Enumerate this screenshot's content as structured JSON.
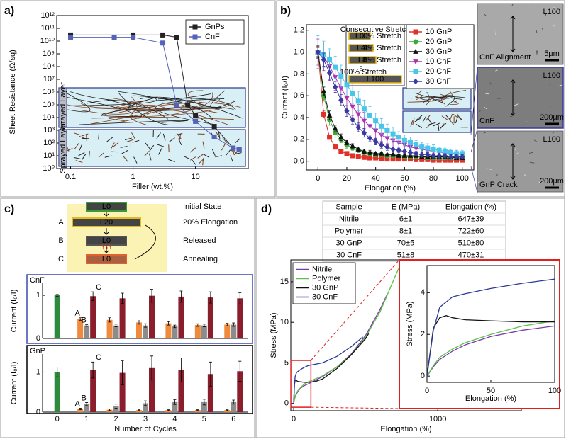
{
  "panel_labels": [
    "a)",
    "b)",
    "c)",
    "d)"
  ],
  "chart_data": [
    {
      "type": "line",
      "xlabel": "Filler (wt.%)",
      "ylabel": "Sheet Resistance (Ω/sq)",
      "xscale": "log",
      "yscale": "log",
      "xlim": [
        0.06,
        70
      ],
      "ylim": [
        1,
        1000000000000.0
      ],
      "xticks": [
        0.1,
        1,
        10
      ],
      "yticks": [
        {
          "value": 1,
          "label": "10⁰"
        },
        {
          "value": 10,
          "label": "10¹"
        },
        {
          "value": 100,
          "label": "10²"
        },
        {
          "value": 1000,
          "label": "10³"
        },
        {
          "value": 10000.0,
          "label": "10⁴"
        },
        {
          "value": 100000.0,
          "label": "10⁵"
        },
        {
          "value": 1000000.0,
          "label": "10⁶"
        },
        {
          "value": 10000000.0,
          "label": "10⁷"
        },
        {
          "value": 100000000.0,
          "label": "10⁸"
        },
        {
          "value": 1000000000.0,
          "label": "10⁹"
        },
        {
          "value": 10000000000.0,
          "label": "10¹⁰"
        },
        {
          "value": 100000000000.0,
          "label": "10¹¹"
        },
        {
          "value": 1000000000000.0,
          "label": "10¹²"
        }
      ],
      "legend": "upper right",
      "annotations": [
        "Sprayed Layer",
        "Sprayed Layer"
      ],
      "series": [
        {
          "name": "GnPs",
          "color": "#222222",
          "marker": "square",
          "x": [
            0.1,
            1,
            3,
            5,
            7.5,
            10,
            20,
            40,
            50
          ],
          "values": [
            30000000000.0,
            30000000000.0,
            30000000000.0,
            20000000000.0,
            100000.0,
            15000.0,
            2000.0,
            40,
            30
          ]
        },
        {
          "name": "CnF",
          "color": "#5562b8",
          "marker": "square",
          "x": [
            0.1,
            0.5,
            1,
            3,
            5,
            10,
            20,
            40,
            50
          ],
          "values": [
            20000000000.0,
            20000000000.0,
            20000000000.0,
            7000000000.0,
            100000.0,
            5000.0,
            300,
            40,
            30
          ]
        }
      ]
    },
    {
      "type": "line",
      "xlabel": "Elongation (%)",
      "ylabel": "Current (I₀/I)",
      "xlim": [
        -8,
        108
      ],
      "ylim": [
        -0.08,
        1.25
      ],
      "xticks": [
        0,
        20,
        40,
        60,
        80,
        100
      ],
      "yticks": [
        {
          "value": 0,
          "label": "0.0"
        },
        0.2,
        0.4,
        0.6,
        0.8,
        {
          "value": 1,
          "label": "1.0"
        },
        1.2
      ],
      "legend": "upper right",
      "x": [
        0,
        4,
        8,
        12,
        16,
        20,
        24,
        28,
        32,
        36,
        40,
        44,
        48,
        52,
        56,
        60,
        64,
        68,
        72,
        76,
        80,
        84,
        88,
        92,
        96,
        100
      ],
      "series": [
        {
          "name": "10 GnP",
          "color": "#e0302a",
          "marker": "square",
          "values": [
            1.0,
            0.43,
            0.22,
            0.13,
            0.09,
            0.07,
            0.05,
            0.04,
            0.035,
            0.03,
            0.03,
            0.025,
            0.02,
            0.02,
            0.02,
            0.02,
            0.02,
            0.015,
            0.015,
            0.015,
            0.01,
            0.01,
            0.01,
            0.01,
            0.01,
            0.01
          ],
          "errors": [
            0.04,
            0.03,
            0.02,
            0.02,
            0.01,
            0.01,
            0.01,
            0.01,
            0.01,
            0.01,
            0.01,
            0.01,
            0.01,
            0.01,
            0.01,
            0.01,
            0.01,
            0.01,
            0.01,
            0.01,
            0.01,
            0.01,
            0.01,
            0.01,
            0.01,
            0.01
          ]
        },
        {
          "name": "20 GnP",
          "color": "#3aaa35",
          "marker": "circle",
          "values": [
            1.0,
            0.6,
            0.38,
            0.26,
            0.2,
            0.15,
            0.12,
            0.1,
            0.08,
            0.07,
            0.06,
            0.06,
            0.05,
            0.05,
            0.05,
            0.04,
            0.04,
            0.04,
            0.04,
            0.03,
            0.03,
            0.03,
            0.03,
            0.03,
            0.03,
            0.03
          ],
          "errors": [
            0.06,
            0.05,
            0.05,
            0.04,
            0.03,
            0.03,
            0.02,
            0.02,
            0.02,
            0.02,
            0.02,
            0.02,
            0.01,
            0.01,
            0.01,
            0.01,
            0.01,
            0.01,
            0.01,
            0.01,
            0.01,
            0.01,
            0.01,
            0.01,
            0.01,
            0.01
          ]
        },
        {
          "name": "30 GnP",
          "color": "#111111",
          "marker": "triangle",
          "values": [
            1.0,
            0.64,
            0.42,
            0.3,
            0.22,
            0.17,
            0.14,
            0.11,
            0.09,
            0.08,
            0.07,
            0.07,
            0.06,
            0.06,
            0.05,
            0.05,
            0.05,
            0.05,
            0.04,
            0.04,
            0.04,
            0.04,
            0.04,
            0.04,
            0.03,
            0.03
          ],
          "errors": [
            0.05,
            0.04,
            0.04,
            0.03,
            0.03,
            0.02,
            0.02,
            0.02,
            0.02,
            0.02,
            0.01,
            0.01,
            0.01,
            0.01,
            0.01,
            0.01,
            0.01,
            0.01,
            0.01,
            0.01,
            0.01,
            0.01,
            0.01,
            0.01,
            0.01,
            0.01
          ]
        },
        {
          "name": "10 CnF",
          "color": "#b030b0",
          "marker": "triangle-down",
          "values": [
            1.0,
            0.96,
            0.87,
            0.77,
            0.67,
            0.58,
            0.5,
            0.43,
            0.37,
            0.32,
            0.28,
            0.24,
            0.21,
            0.19,
            0.17,
            0.15,
            0.13,
            0.12,
            0.11,
            0.1,
            0.09,
            0.08,
            0.08,
            0.07,
            0.07,
            0.06
          ],
          "errors": [
            0.12,
            0.13,
            0.13,
            0.12,
            0.12,
            0.11,
            0.1,
            0.09,
            0.08,
            0.08,
            0.07,
            0.07,
            0.06,
            0.06,
            0.05,
            0.05,
            0.05,
            0.04,
            0.04,
            0.04,
            0.03,
            0.03,
            0.03,
            0.03,
            0.03,
            0.03
          ]
        },
        {
          "name": "20 CnF",
          "color": "#4cc4ea",
          "marker": "square",
          "values": [
            1.0,
            0.98,
            0.93,
            0.86,
            0.78,
            0.7,
            0.62,
            0.55,
            0.48,
            0.42,
            0.37,
            0.32,
            0.28,
            0.25,
            0.22,
            0.19,
            0.17,
            0.15,
            0.13,
            0.12,
            0.11,
            0.1,
            0.09,
            0.08,
            0.07,
            0.07
          ],
          "errors": [
            0.15,
            0.12,
            0.1,
            0.1,
            0.1,
            0.1,
            0.09,
            0.09,
            0.08,
            0.08,
            0.07,
            0.07,
            0.06,
            0.06,
            0.05,
            0.05,
            0.05,
            0.04,
            0.04,
            0.04,
            0.04,
            0.03,
            0.03,
            0.03,
            0.03,
            0.03
          ]
        },
        {
          "name": "30 CnF",
          "color": "#3a3aa0",
          "marker": "diamond",
          "values": [
            1.0,
            0.93,
            0.81,
            0.68,
            0.56,
            0.46,
            0.38,
            0.31,
            0.26,
            0.21,
            0.18,
            0.15,
            0.13,
            0.11,
            0.1,
            0.09,
            0.08,
            0.07,
            0.06,
            0.06,
            0.05,
            0.05,
            0.05,
            0.04,
            0.04,
            0.04
          ],
          "errors": [
            0.06,
            0.06,
            0.06,
            0.05,
            0.05,
            0.05,
            0.04,
            0.04,
            0.04,
            0.03,
            0.03,
            0.03,
            0.03,
            0.02,
            0.02,
            0.02,
            0.02,
            0.02,
            0.02,
            0.02,
            0.02,
            0.02,
            0.02,
            0.02,
            0.02,
            0.02
          ]
        }
      ],
      "schematic": {
        "title": "Consecutive Stretch",
        "bars": [
          "L0",
          "L4",
          "L8",
          "L100"
        ],
        "labels": [
          "0% Stretch",
          "4% Stretch",
          "8% Stretch",
          "100% Stretch"
        ]
      },
      "photos": [
        {
          "label": "L100",
          "caption": "CnF Alignment",
          "scale": "5μm"
        },
        {
          "label": "L100",
          "caption": "CnF",
          "scale": "200μm"
        },
        {
          "label": "L100",
          "caption": "GnP Crack",
          "scale": "200μm"
        }
      ]
    },
    {
      "type": "bar",
      "title": "CnF",
      "ylabel": "Current (I₀/I)",
      "ylim": [
        0,
        1.28
      ],
      "yticks": [
        0,
        1
      ],
      "series": [
        {
          "color": "#2e8b3e",
          "values": [
            1.0,
            null,
            null,
            null,
            null,
            null,
            null
          ],
          "errors": [
            0.02,
            null,
            null,
            null,
            null,
            null,
            null
          ]
        },
        {
          "name": "A",
          "color": "#f08a3c",
          "values": [
            null,
            0.45,
            0.43,
            0.37,
            0.35,
            0.31,
            0.32
          ],
          "errors": [
            null,
            0.03,
            0.05,
            0.04,
            0.04,
            0.03,
            0.03
          ]
        },
        {
          "name": "B",
          "color": "#8c8c8c",
          "values": [
            null,
            0.3,
            0.3,
            0.3,
            0.28,
            0.3,
            0.32
          ],
          "errors": [
            null,
            0.02,
            0.03,
            0.04,
            0.03,
            0.03,
            0.04
          ]
        },
        {
          "name": "C",
          "color": "#8a1e2c",
          "values": [
            null,
            0.98,
            0.93,
            0.99,
            0.97,
            0.95,
            0.93
          ],
          "errors": [
            null,
            0.1,
            0.12,
            0.15,
            0.13,
            0.13,
            0.13
          ]
        }
      ]
    },
    {
      "type": "bar",
      "title": "GnP",
      "ylabel": "Current (I₀/I)",
      "xlabel": "Number of Cycles",
      "ylim": [
        0,
        1.45
      ],
      "yticks": [
        0,
        1
      ],
      "categories": [
        "0",
        "1",
        "2",
        "3",
        "4",
        "5",
        "6"
      ],
      "series": [
        {
          "color": "#2e8b3e",
          "values": [
            1.0,
            null,
            null,
            null,
            null,
            null,
            null
          ],
          "errors": [
            0.12,
            null,
            null,
            null,
            null,
            null,
            null
          ]
        },
        {
          "name": "A",
          "color": "#f08a3c",
          "values": [
            null,
            0.08,
            0.06,
            0.05,
            0.05,
            0.05,
            0.05
          ],
          "errors": [
            null,
            0.02,
            0.02,
            0.01,
            0.01,
            0.01,
            0.01
          ]
        },
        {
          "name": "B",
          "color": "#8c8c8c",
          "values": [
            null,
            0.2,
            0.15,
            0.22,
            0.25,
            0.25,
            0.25
          ],
          "errors": [
            null,
            0.04,
            0.05,
            0.06,
            0.06,
            0.07,
            0.05
          ]
        },
        {
          "name": "C",
          "color": "#8a1e2c",
          "values": [
            null,
            1.05,
            0.98,
            1.1,
            1.05,
            0.95,
            1.02
          ],
          "errors": [
            null,
            0.2,
            0.3,
            0.3,
            0.3,
            0.3,
            0.25
          ]
        }
      ]
    },
    {
      "type": "line",
      "xlabel": "Elongation (%)",
      "ylabel": "Stress (MPa)",
      "xlim": [
        -20,
        1580
      ],
      "ylim": [
        -0.9,
        17.7
      ],
      "xticks": [
        0,
        1000
      ],
      "yticks": [
        0,
        5,
        10,
        15
      ],
      "legend": "upper left",
      "series": [
        {
          "name": "Nitrile",
          "color": "#7a3aa8",
          "x": [
            0,
            5,
            10,
            20,
            30,
            50,
            75,
            100,
            200,
            300,
            400,
            500,
            600,
            650
          ],
          "values": [
            0,
            0.45,
            0.8,
            1.2,
            1.5,
            1.9,
            2.2,
            2.4,
            3.3,
            4.5,
            6.1,
            8.4,
            11.6,
            13.5
          ]
        },
        {
          "name": "Polymer",
          "color": "#5cc24a",
          "x": [
            0,
            5,
            10,
            20,
            30,
            50,
            75,
            100,
            200,
            300,
            400,
            500,
            600,
            700,
            750
          ],
          "values": [
            0,
            0.5,
            0.9,
            1.3,
            1.6,
            2.0,
            2.4,
            2.65,
            3.4,
            4.5,
            6.0,
            8.2,
            11.3,
            15.5,
            17.5
          ]
        },
        {
          "name": "30 GnP",
          "color": "#111111",
          "x": [
            0,
            5,
            10,
            15,
            20,
            30,
            50,
            75,
            100,
            150,
            200,
            300,
            400,
            500,
            520
          ],
          "values": [
            0,
            2.3,
            2.8,
            2.9,
            2.8,
            2.7,
            2.65,
            2.6,
            2.6,
            2.7,
            3.0,
            4.3,
            6.0,
            8.0,
            8.6
          ]
        },
        {
          "name": "30 CnF",
          "color": "#2a3a9a",
          "x": [
            0,
            5,
            10,
            20,
            30,
            50,
            75,
            100,
            200,
            300,
            400,
            480
          ],
          "values": [
            0,
            2.2,
            3.3,
            3.8,
            3.95,
            4.2,
            4.45,
            4.65,
            5.0,
            5.8,
            7.0,
            8.2
          ]
        }
      ],
      "inset": {
        "xlim": [
          0,
          100
        ],
        "ylim": [
          -0.3,
          5.3
        ],
        "xticks": [
          0,
          50,
          100
        ],
        "yticks": [
          0,
          2,
          4
        ],
        "xlabel": "Elongation (%)",
        "ylabel": "Stress (MPa)"
      }
    }
  ],
  "schematic_c": {
    "steps": [
      {
        "bar": "L0",
        "label": "Initial State"
      },
      {
        "letter": "A",
        "bar": "L20",
        "label": "20% Elongation"
      },
      {
        "letter": "B",
        "bar": "L0",
        "label": "Released"
      },
      {
        "letter": "C",
        "bar": "L0",
        "label": "Annealing"
      }
    ]
  },
  "table": {
    "header": [
      "Sample",
      "E (MPa)",
      "Elongation (%)"
    ],
    "rows": [
      [
        "Nitrile",
        "6±1",
        "647±39"
      ],
      [
        "Polymer",
        "8±1",
        "722±60"
      ],
      [
        "30 GnP",
        "70±5",
        "510±80"
      ],
      [
        "30 CnF",
        "51±8",
        "470±31"
      ]
    ],
    "row_colors": [
      "#7a3aa8",
      "#3aaa35",
      "#111111",
      "#2a3a9a"
    ]
  }
}
